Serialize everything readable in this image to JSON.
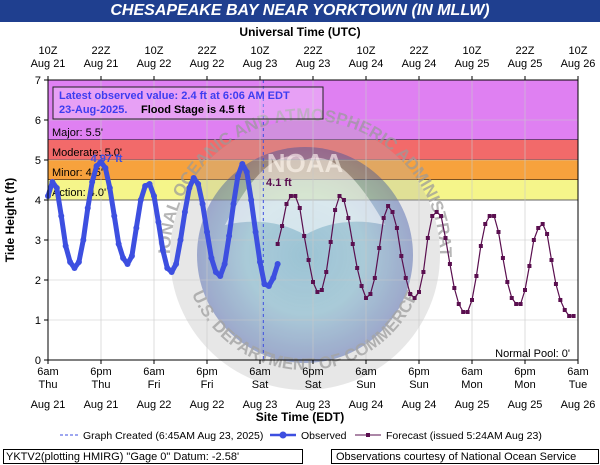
{
  "title": "CHESAPEAKE BAY NEAR YORKTOWN (IN MLLW)",
  "footer": {
    "left": "YKTV2(plotting HMIRG) \"Gage 0\" Datum: -2.58'",
    "right": "Observations courtesy of National Ocean Service"
  },
  "colors": {
    "title_bg": "#1f3f8f",
    "observed": "#3d4fe0",
    "forecast": "#5a0f4f",
    "major_band": "#df80f2",
    "moderate_band": "#f26a6a",
    "minor_band": "#f7a23d",
    "action_band": "#f5f58a",
    "info_box_text": "#3d3df0"
  },
  "chart_data": {
    "type": "line",
    "ylabel": "Tide Height (ft)",
    "ylim": [
      0,
      7
    ],
    "yticks": [
      0,
      1,
      2,
      3,
      4,
      5,
      6,
      7
    ],
    "top_axis_label": "Universal Time (UTC)",
    "bottom_axis_label": "Site Time (EDT)",
    "x_hours_range": [
      0,
      120
    ],
    "top_ticks": [
      {
        "h": 0,
        "t1": "10Z",
        "t2": "Aug 21"
      },
      {
        "h": 12,
        "t1": "22Z",
        "t2": "Aug 21"
      },
      {
        "h": 24,
        "t1": "10Z",
        "t2": "Aug 22"
      },
      {
        "h": 36,
        "t1": "22Z",
        "t2": "Aug 22"
      },
      {
        "h": 48,
        "t1": "10Z",
        "t2": "Aug 23"
      },
      {
        "h": 60,
        "t1": "22Z",
        "t2": "Aug 23"
      },
      {
        "h": 72,
        "t1": "10Z",
        "t2": "Aug 24"
      },
      {
        "h": 84,
        "t1": "22Z",
        "t2": "Aug 24"
      },
      {
        "h": 96,
        "t1": "10Z",
        "t2": "Aug 25"
      },
      {
        "h": 108,
        "t1": "22Z",
        "t2": "Aug 25"
      },
      {
        "h": 120,
        "t1": "10Z",
        "t2": "Aug 26"
      }
    ],
    "bottom_ticks": [
      {
        "h": 0,
        "t1": "6am",
        "t2": "Thu",
        "t3": "Aug 21"
      },
      {
        "h": 12,
        "t1": "6pm",
        "t2": "Thu",
        "t3": "Aug 21"
      },
      {
        "h": 24,
        "t1": "6am",
        "t2": "Fri",
        "t3": "Aug 22"
      },
      {
        "h": 36,
        "t1": "6pm",
        "t2": "Fri",
        "t3": "Aug 22"
      },
      {
        "h": 48,
        "t1": "6am",
        "t2": "Sat",
        "t3": "Aug 23"
      },
      {
        "h": 60,
        "t1": "6pm",
        "t2": "Sat",
        "t3": "Aug 23"
      },
      {
        "h": 72,
        "t1": "6am",
        "t2": "Sun",
        "t3": "Aug 24"
      },
      {
        "h": 84,
        "t1": "6pm",
        "t2": "Sun",
        "t3": "Aug 24"
      },
      {
        "h": 96,
        "t1": "6am",
        "t2": "Mon",
        "t3": "Aug 25"
      },
      {
        "h": 108,
        "t1": "6pm",
        "t2": "Mon",
        "t3": "Aug 25"
      },
      {
        "h": 120,
        "t1": "6am",
        "t2": "Tue",
        "t3": "Aug 26"
      }
    ],
    "bands": [
      {
        "name": "Major",
        "label": "Major: 5.5'",
        "from": 5.5,
        "to": 7,
        "color": "#df80f2"
      },
      {
        "name": "Moderate",
        "label": "Moderate: 5.0'",
        "from": 5.0,
        "to": 5.5,
        "color": "#f26a6a"
      },
      {
        "name": "Minor",
        "label": "Minor: 4.5'",
        "from": 4.5,
        "to": 5.0,
        "color": "#f7a23d"
      },
      {
        "name": "Action",
        "label": "Action: 4.0'",
        "from": 4.0,
        "to": 4.5,
        "color": "#f5f58a"
      }
    ],
    "normal_pool_label": "Normal Pool: 0'",
    "graph_created_hour": 48.75,
    "info_box": {
      "line1": "Latest observed value: 2.4 ft at 6:06 AM EDT",
      "line2": "23-Aug-2025.",
      "flood_stage": "Flood Stage is 4.5 ft"
    },
    "observed_peak_label": {
      "text": "4.97 ft",
      "h": 13.5,
      "y": 4.97
    },
    "forecast_peak_label": {
      "text": "4.1 ft",
      "h": 50.5,
      "y": 4.1
    },
    "series": [
      {
        "name": "Observed",
        "values": [
          [
            0,
            4.1
          ],
          [
            1,
            4.45
          ],
          [
            2,
            4.3
          ],
          [
            3,
            3.6
          ],
          [
            4,
            2.85
          ],
          [
            5,
            2.45
          ],
          [
            6,
            2.3
          ],
          [
            7,
            2.45
          ],
          [
            8,
            3.0
          ],
          [
            9,
            3.8
          ],
          [
            10,
            4.45
          ],
          [
            11,
            4.85
          ],
          [
            12,
            4.95
          ],
          [
            13,
            4.8
          ],
          [
            14,
            4.3
          ],
          [
            15,
            3.6
          ],
          [
            16,
            2.9
          ],
          [
            17,
            2.55
          ],
          [
            18,
            2.4
          ],
          [
            19,
            2.6
          ],
          [
            20,
            3.3
          ],
          [
            21,
            4.0
          ],
          [
            22,
            4.35
          ],
          [
            23,
            4.4
          ],
          [
            24,
            4.1
          ],
          [
            25,
            3.45
          ],
          [
            26,
            2.75
          ],
          [
            27,
            2.3
          ],
          [
            28,
            2.2
          ],
          [
            29,
            2.4
          ],
          [
            30,
            3.0
          ],
          [
            31,
            3.7
          ],
          [
            32,
            4.3
          ],
          [
            33,
            4.55
          ],
          [
            34,
            4.4
          ],
          [
            35,
            3.9
          ],
          [
            36,
            3.2
          ],
          [
            37,
            2.55
          ],
          [
            38,
            2.2
          ],
          [
            39,
            2.1
          ],
          [
            40,
            2.4
          ],
          [
            41,
            3.1
          ],
          [
            42,
            3.9
          ],
          [
            43,
            4.6
          ],
          [
            44,
            4.9
          ],
          [
            45,
            4.7
          ],
          [
            46,
            4.0
          ],
          [
            47,
            3.2
          ],
          [
            48,
            2.45
          ],
          [
            49,
            1.9
          ],
          [
            50,
            1.85
          ],
          [
            51,
            2.05
          ],
          [
            52,
            2.4
          ]
        ]
      },
      {
        "name": "Forecast",
        "issued": "issued 5:24AM Aug 23",
        "values": [
          [
            52,
            2.9
          ],
          [
            53,
            3.35
          ],
          [
            54,
            3.9
          ],
          [
            55,
            4.1
          ],
          [
            56,
            4.1
          ],
          [
            57,
            3.8
          ],
          [
            58,
            3.1
          ],
          [
            59,
            2.5
          ],
          [
            60,
            1.95
          ],
          [
            61,
            1.7
          ],
          [
            62,
            1.75
          ],
          [
            63,
            2.2
          ],
          [
            64,
            2.95
          ],
          [
            65,
            3.75
          ],
          [
            66,
            4.1
          ],
          [
            67,
            4.0
          ],
          [
            68,
            3.55
          ],
          [
            69,
            2.9
          ],
          [
            70,
            2.3
          ],
          [
            71,
            1.85
          ],
          [
            72,
            1.55
          ],
          [
            73,
            1.65
          ],
          [
            74,
            2.05
          ],
          [
            75,
            2.8
          ],
          [
            76,
            3.55
          ],
          [
            77,
            3.85
          ],
          [
            78,
            3.7
          ],
          [
            79,
            3.3
          ],
          [
            80,
            2.6
          ],
          [
            81,
            2.05
          ],
          [
            82,
            1.65
          ],
          [
            83,
            1.55
          ],
          [
            84,
            1.7
          ],
          [
            85,
            2.2
          ],
          [
            86,
            3.05
          ],
          [
            87,
            3.6
          ],
          [
            88,
            3.7
          ],
          [
            89,
            3.6
          ],
          [
            90,
            3.05
          ],
          [
            91,
            2.4
          ],
          [
            92,
            1.8
          ],
          [
            93,
            1.4
          ],
          [
            94,
            1.2
          ],
          [
            95,
            1.2
          ],
          [
            96,
            1.5
          ],
          [
            97,
            2.1
          ],
          [
            98,
            2.85
          ],
          [
            99,
            3.4
          ],
          [
            100,
            3.6
          ],
          [
            101,
            3.6
          ],
          [
            102,
            3.2
          ],
          [
            103,
            2.55
          ],
          [
            104,
            1.95
          ],
          [
            105,
            1.55
          ],
          [
            106,
            1.4
          ],
          [
            107,
            1.4
          ],
          [
            108,
            1.75
          ],
          [
            109,
            2.35
          ],
          [
            110,
            3.0
          ],
          [
            111,
            3.3
          ],
          [
            112,
            3.4
          ],
          [
            113,
            3.15
          ],
          [
            114,
            2.5
          ],
          [
            115,
            1.9
          ],
          [
            116,
            1.5
          ],
          [
            117,
            1.25
          ],
          [
            118,
            1.1
          ],
          [
            119,
            1.1
          ]
        ]
      }
    ],
    "legend": {
      "graph_created": "Graph Created (6:45AM Aug 23, 2025)",
      "observed": "Observed",
      "forecast": "Forecast (issued 5:24AM Aug 23)"
    },
    "watermark": {
      "text_top": "NATIONAL OCEANIC AND ATMOSPHERIC ADMINISTRATION",
      "text_bottom": "U.S. DEPARTMENT OF COMMERCE",
      "center_text": "NOAA"
    }
  }
}
